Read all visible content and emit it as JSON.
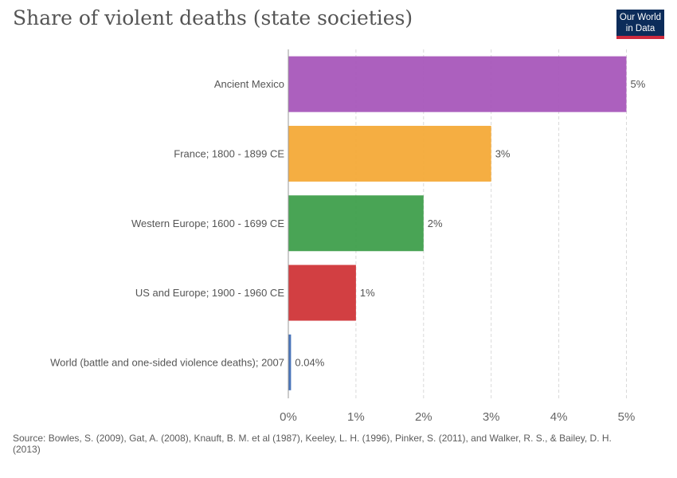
{
  "header": {
    "logo_line1": "Our World",
    "logo_line2": "in Data"
  },
  "footer": {
    "source": "Source: Bowles, S. (2009), Gat, A. (2008), Knauft, B. M. et al (1987), Keeley, L. H. (1996), Pinker, S. (2011), and Walker, R. S., & Bailey, D. H. (2013)"
  },
  "chart_data": {
    "type": "bar",
    "orientation": "horizontal",
    "title": "Share of violent deaths (state societies)",
    "categories": [
      "Ancient Mexico",
      "France; 1800 - 1899 CE",
      "Western Europe; 1600 - 1699 CE",
      "US and Europe; 1900 - 1960 CE",
      "World (battle and one-sided violence deaths); 2007"
    ],
    "values": [
      5,
      3,
      2,
      1,
      0.04
    ],
    "value_labels": [
      "5%",
      "3%",
      "2%",
      "1%",
      "0.04%"
    ],
    "colors": [
      "#a654b9",
      "#f4a834",
      "#3b9d48",
      "#cf3034",
      "#3b69b4"
    ],
    "xlim": [
      0,
      5
    ],
    "xticks": [
      0,
      1,
      2,
      3,
      4,
      5
    ],
    "xtick_labels": [
      "0%",
      "1%",
      "2%",
      "3%",
      "4%",
      "5%"
    ],
    "grid": "vertical dashed",
    "legend": "none"
  }
}
